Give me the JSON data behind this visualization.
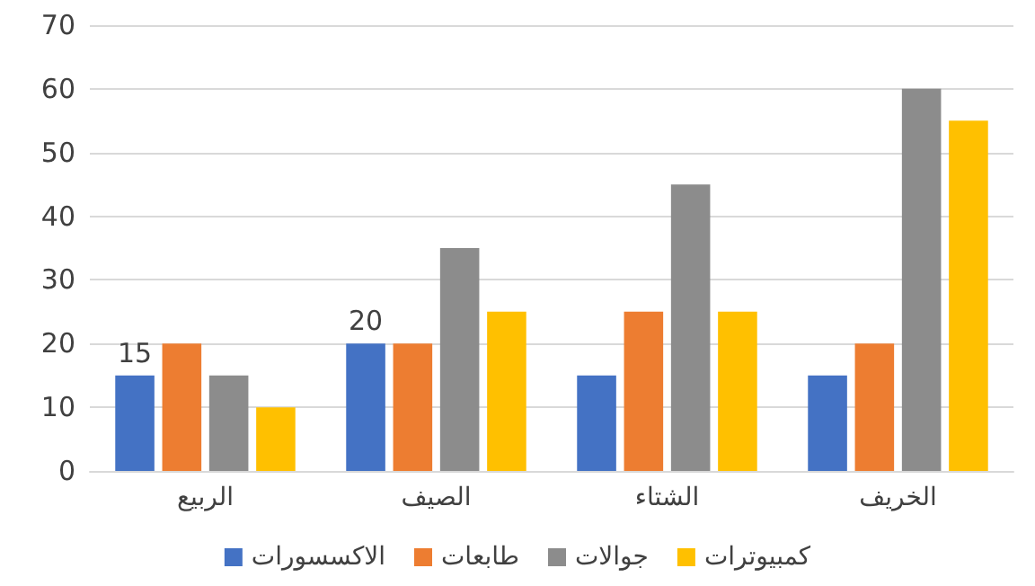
{
  "chart_data": {
    "type": "bar",
    "categories": [
      "الربيع",
      "الصيف",
      "الشتاء",
      "الخريف"
    ],
    "series": [
      {
        "name": "الاكسسورات",
        "color": "#4472c4",
        "values": [
          15,
          20,
          15,
          15
        ],
        "value_labels": [
          "15",
          "20",
          null,
          null
        ]
      },
      {
        "name": "طابعات",
        "color": "#ed7d31",
        "values": [
          20,
          20,
          25,
          20
        ]
      },
      {
        "name": "جوالات",
        "color": "#8c8c8c",
        "values": [
          15,
          35,
          45,
          60
        ]
      },
      {
        "name": "كمبيوترات",
        "color": "#ffc000",
        "values": [
          10,
          25,
          25,
          55
        ]
      }
    ],
    "ylim": [
      0,
      70
    ],
    "yticks": [
      0,
      10,
      20,
      30,
      40,
      50,
      60,
      70
    ],
    "grid": "y",
    "legend": "bottom"
  }
}
